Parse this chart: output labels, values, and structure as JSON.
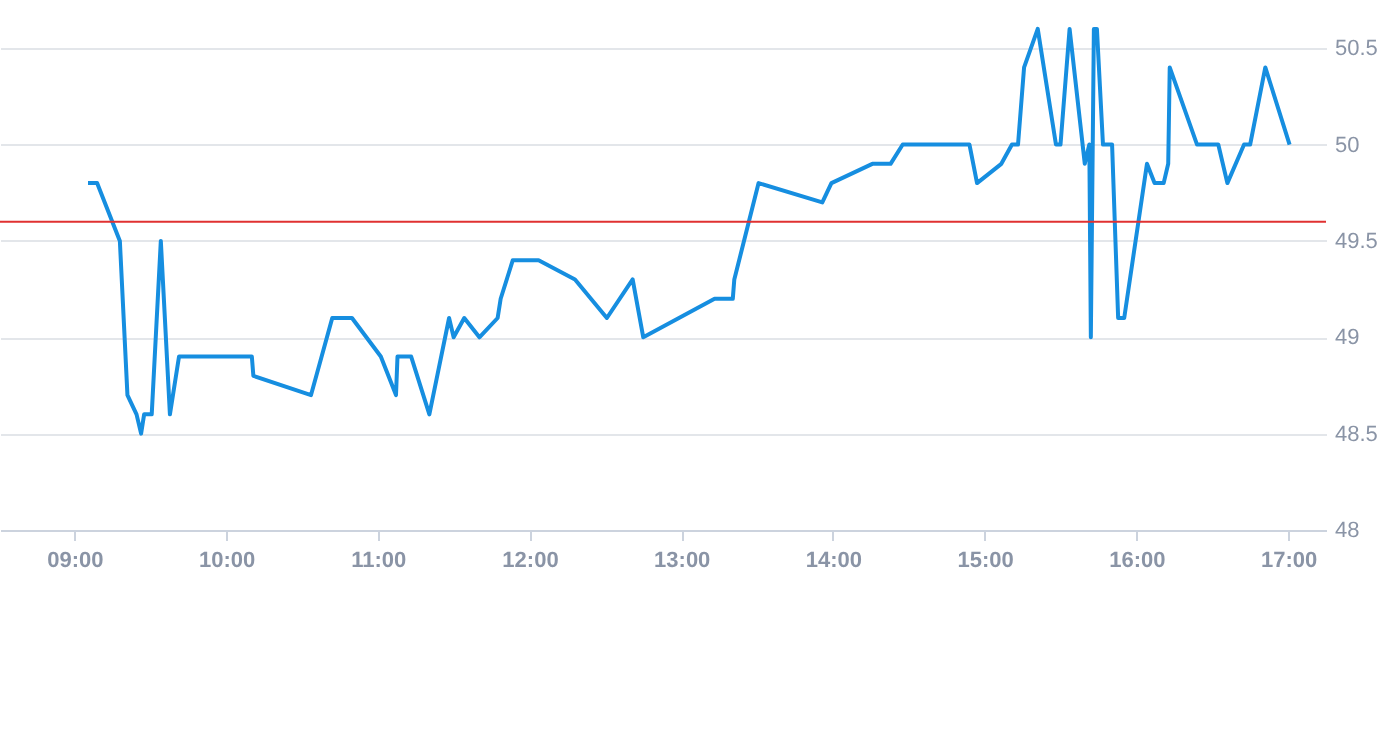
{
  "chart_data": {
    "type": "line",
    "x": [
      9.09,
      9.15,
      9.3,
      9.35,
      9.41,
      9.44,
      9.46,
      9.51,
      9.57,
      9.63,
      9.69,
      10.17,
      10.18,
      10.56,
      10.7,
      10.83,
      11.02,
      11.12,
      11.13,
      11.22,
      11.34,
      11.47,
      11.5,
      11.57,
      11.67,
      11.79,
      11.81,
      11.89,
      12.06,
      12.3,
      12.51,
      12.68,
      12.75,
      13.22,
      13.34,
      13.35,
      13.51,
      13.93,
      13.99,
      14.26,
      14.38,
      14.46,
      14.9,
      14.95,
      15.11,
      15.18,
      15.22,
      15.26,
      15.35,
      15.47,
      15.5,
      15.56,
      15.66,
      15.69,
      15.7,
      15.72,
      15.74,
      15.78,
      15.84,
      15.88,
      15.92,
      16.07,
      16.12,
      16.18,
      16.21,
      16.22,
      16.4,
      16.54,
      16.6,
      16.71,
      16.75,
      16.85,
      17.01
    ],
    "series": [
      {
        "color": "#168ee0",
        "values": [
          49.8,
          49.8,
          49.5,
          48.7,
          48.6,
          48.5,
          48.6,
          48.6,
          49.5,
          48.6,
          48.9,
          48.9,
          48.8,
          48.7,
          49.1,
          49.1,
          48.9,
          48.7,
          48.9,
          48.9,
          48.6,
          49.1,
          49.0,
          49.1,
          49.0,
          49.1,
          49.2,
          49.4,
          49.4,
          49.3,
          49.1,
          49.3,
          49.0,
          49.2,
          49.2,
          49.3,
          49.8,
          49.7,
          49.8,
          49.9,
          49.9,
          50.0,
          50.0,
          49.8,
          49.9,
          50.0,
          50.0,
          50.4,
          50.6,
          50.0,
          50.0,
          50.6,
          49.9,
          50.0,
          49.0,
          50.6,
          50.6,
          50.0,
          50.0,
          49.1,
          49.1,
          49.9,
          49.8,
          49.8,
          49.9,
          50.4,
          50.0,
          50.0,
          49.8,
          50.0,
          50.0,
          50.4,
          50.0
        ]
      }
    ],
    "xlim": [
      8.51,
      17.25
    ],
    "xticks": [
      {
        "value": 9,
        "label": "09:00"
      },
      {
        "value": 10,
        "label": "10:00"
      },
      {
        "value": 11,
        "label": "11:00"
      },
      {
        "value": 12,
        "label": "12:00"
      },
      {
        "value": 13,
        "label": "13:00"
      },
      {
        "value": 14,
        "label": "14:00"
      },
      {
        "value": 15,
        "label": "15:00"
      },
      {
        "value": 16,
        "label": "16:00"
      },
      {
        "value": 17,
        "label": "17:00"
      }
    ],
    "ylim": [
      48,
      50.75
    ],
    "yticks": [
      48,
      48.5,
      49,
      49.5,
      50,
      50.5
    ],
    "grid": "y",
    "ref_lines": [
      {
        "axis": "y",
        "value": 49.6,
        "color": "#e03131"
      }
    ]
  }
}
